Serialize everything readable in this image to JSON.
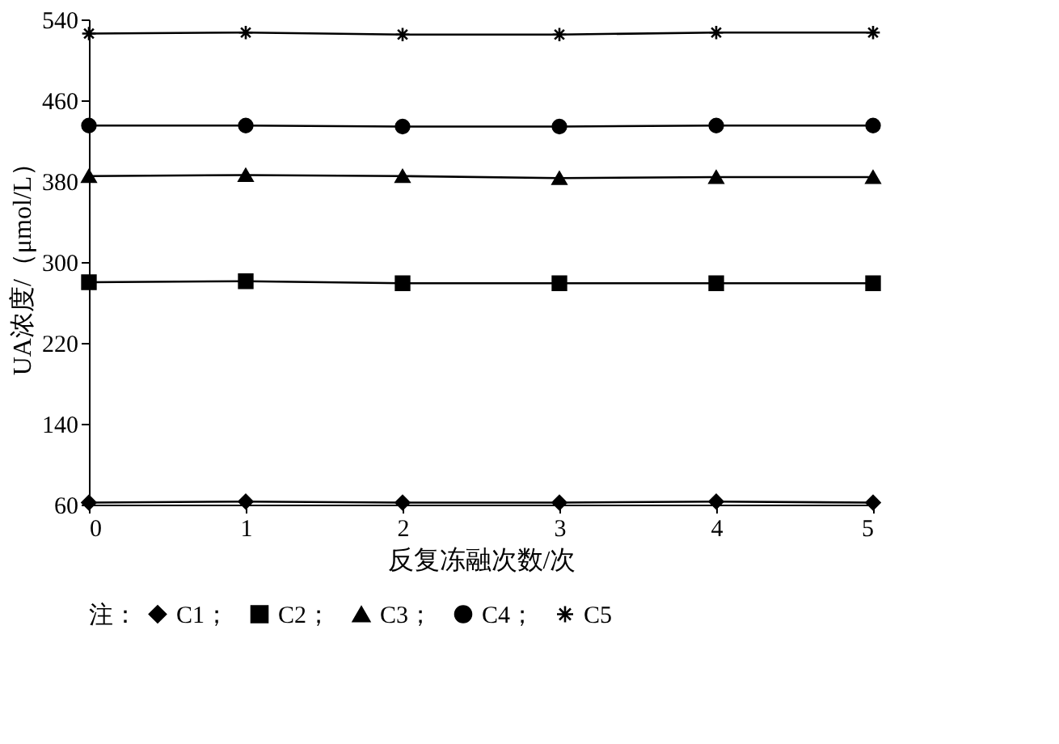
{
  "chart_data": {
    "type": "line",
    "xlabel": "反复冻融次数/次",
    "ylabel": "UA浓度/（μmol/L）",
    "legend_title": "注：",
    "legend": "bottom",
    "grid": false,
    "line_style": "solid",
    "x": [
      0,
      1,
      2,
      3,
      4,
      5
    ],
    "xlim": [
      0,
      5
    ],
    "xticks": [
      0,
      1,
      2,
      3,
      4,
      5
    ],
    "ylim": [
      60,
      540
    ],
    "yticks": [
      60,
      140,
      220,
      300,
      380,
      460,
      540
    ],
    "series": [
      {
        "name": "C1；",
        "color": "#000000",
        "marker": "diamond",
        "values": [
          62,
          63,
          62,
          62,
          63,
          62
        ]
      },
      {
        "name": "C2；",
        "color": "#000000",
        "marker": "square",
        "values": [
          280,
          281,
          279,
          279,
          279,
          279
        ]
      },
      {
        "name": "C3；",
        "color": "#000000",
        "marker": "triangle",
        "values": [
          385,
          386,
          385,
          383,
          384,
          384
        ]
      },
      {
        "name": "C4；",
        "color": "#000000",
        "marker": "circle",
        "values": [
          435,
          435,
          434,
          434,
          435,
          435
        ]
      },
      {
        "name": "C5",
        "color": "#000000",
        "marker": "cross",
        "values": [
          526,
          527,
          525,
          525,
          527,
          527
        ]
      }
    ]
  }
}
